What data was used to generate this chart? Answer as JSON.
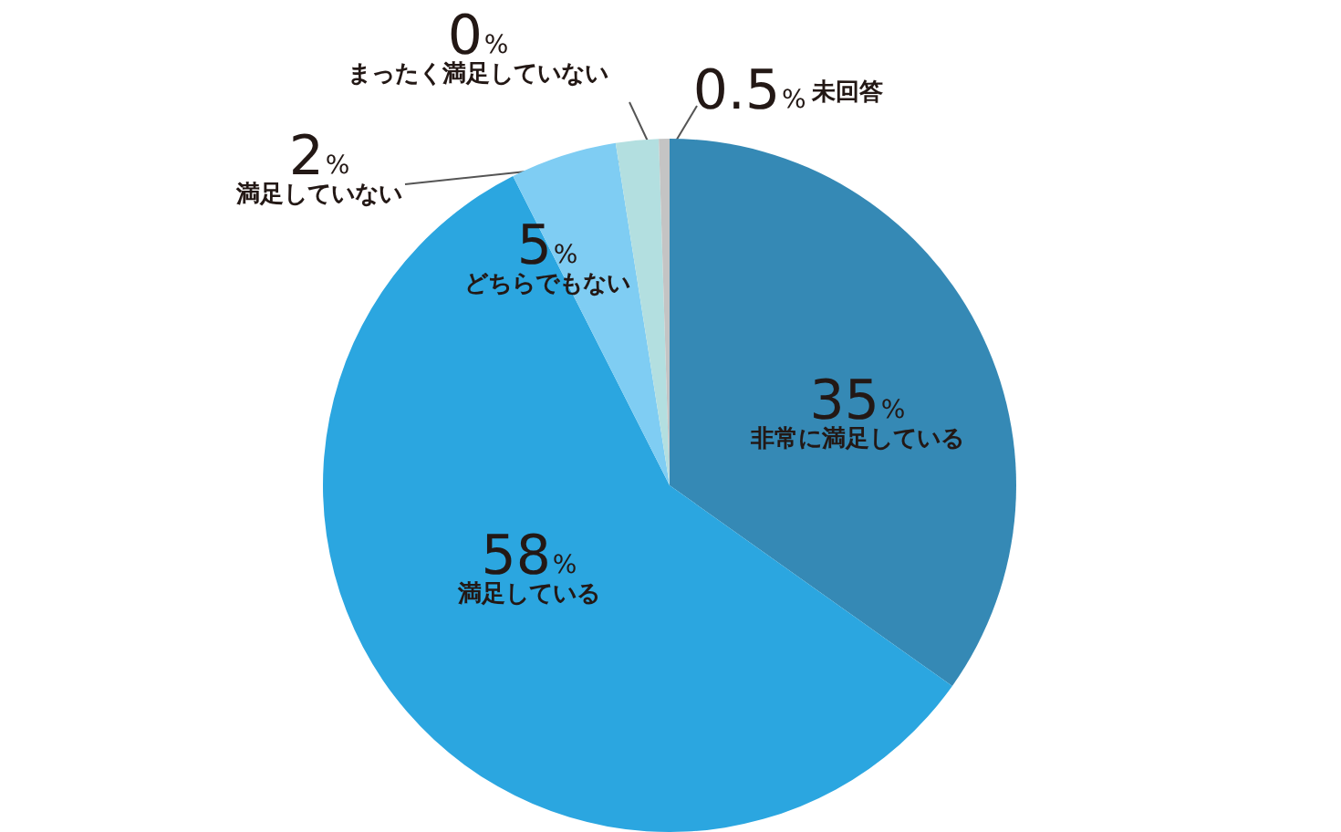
{
  "chart_data": {
    "type": "pie",
    "categories": [
      "非常に満足している",
      "満足している",
      "どちらでもない",
      "満足していない",
      "まったく満足していない",
      "未回答"
    ],
    "values": [
      35,
      58,
      5,
      2,
      0,
      0.5
    ],
    "colors": [
      "#3589b5",
      "#2ba6e0",
      "#7fcdf3",
      "#b3dfe0",
      "#9fc9d0",
      "#c4c4c4"
    ],
    "value_labels": [
      "35%",
      "58%",
      "5%",
      "2%",
      "0%",
      "0.5%"
    ]
  }
}
